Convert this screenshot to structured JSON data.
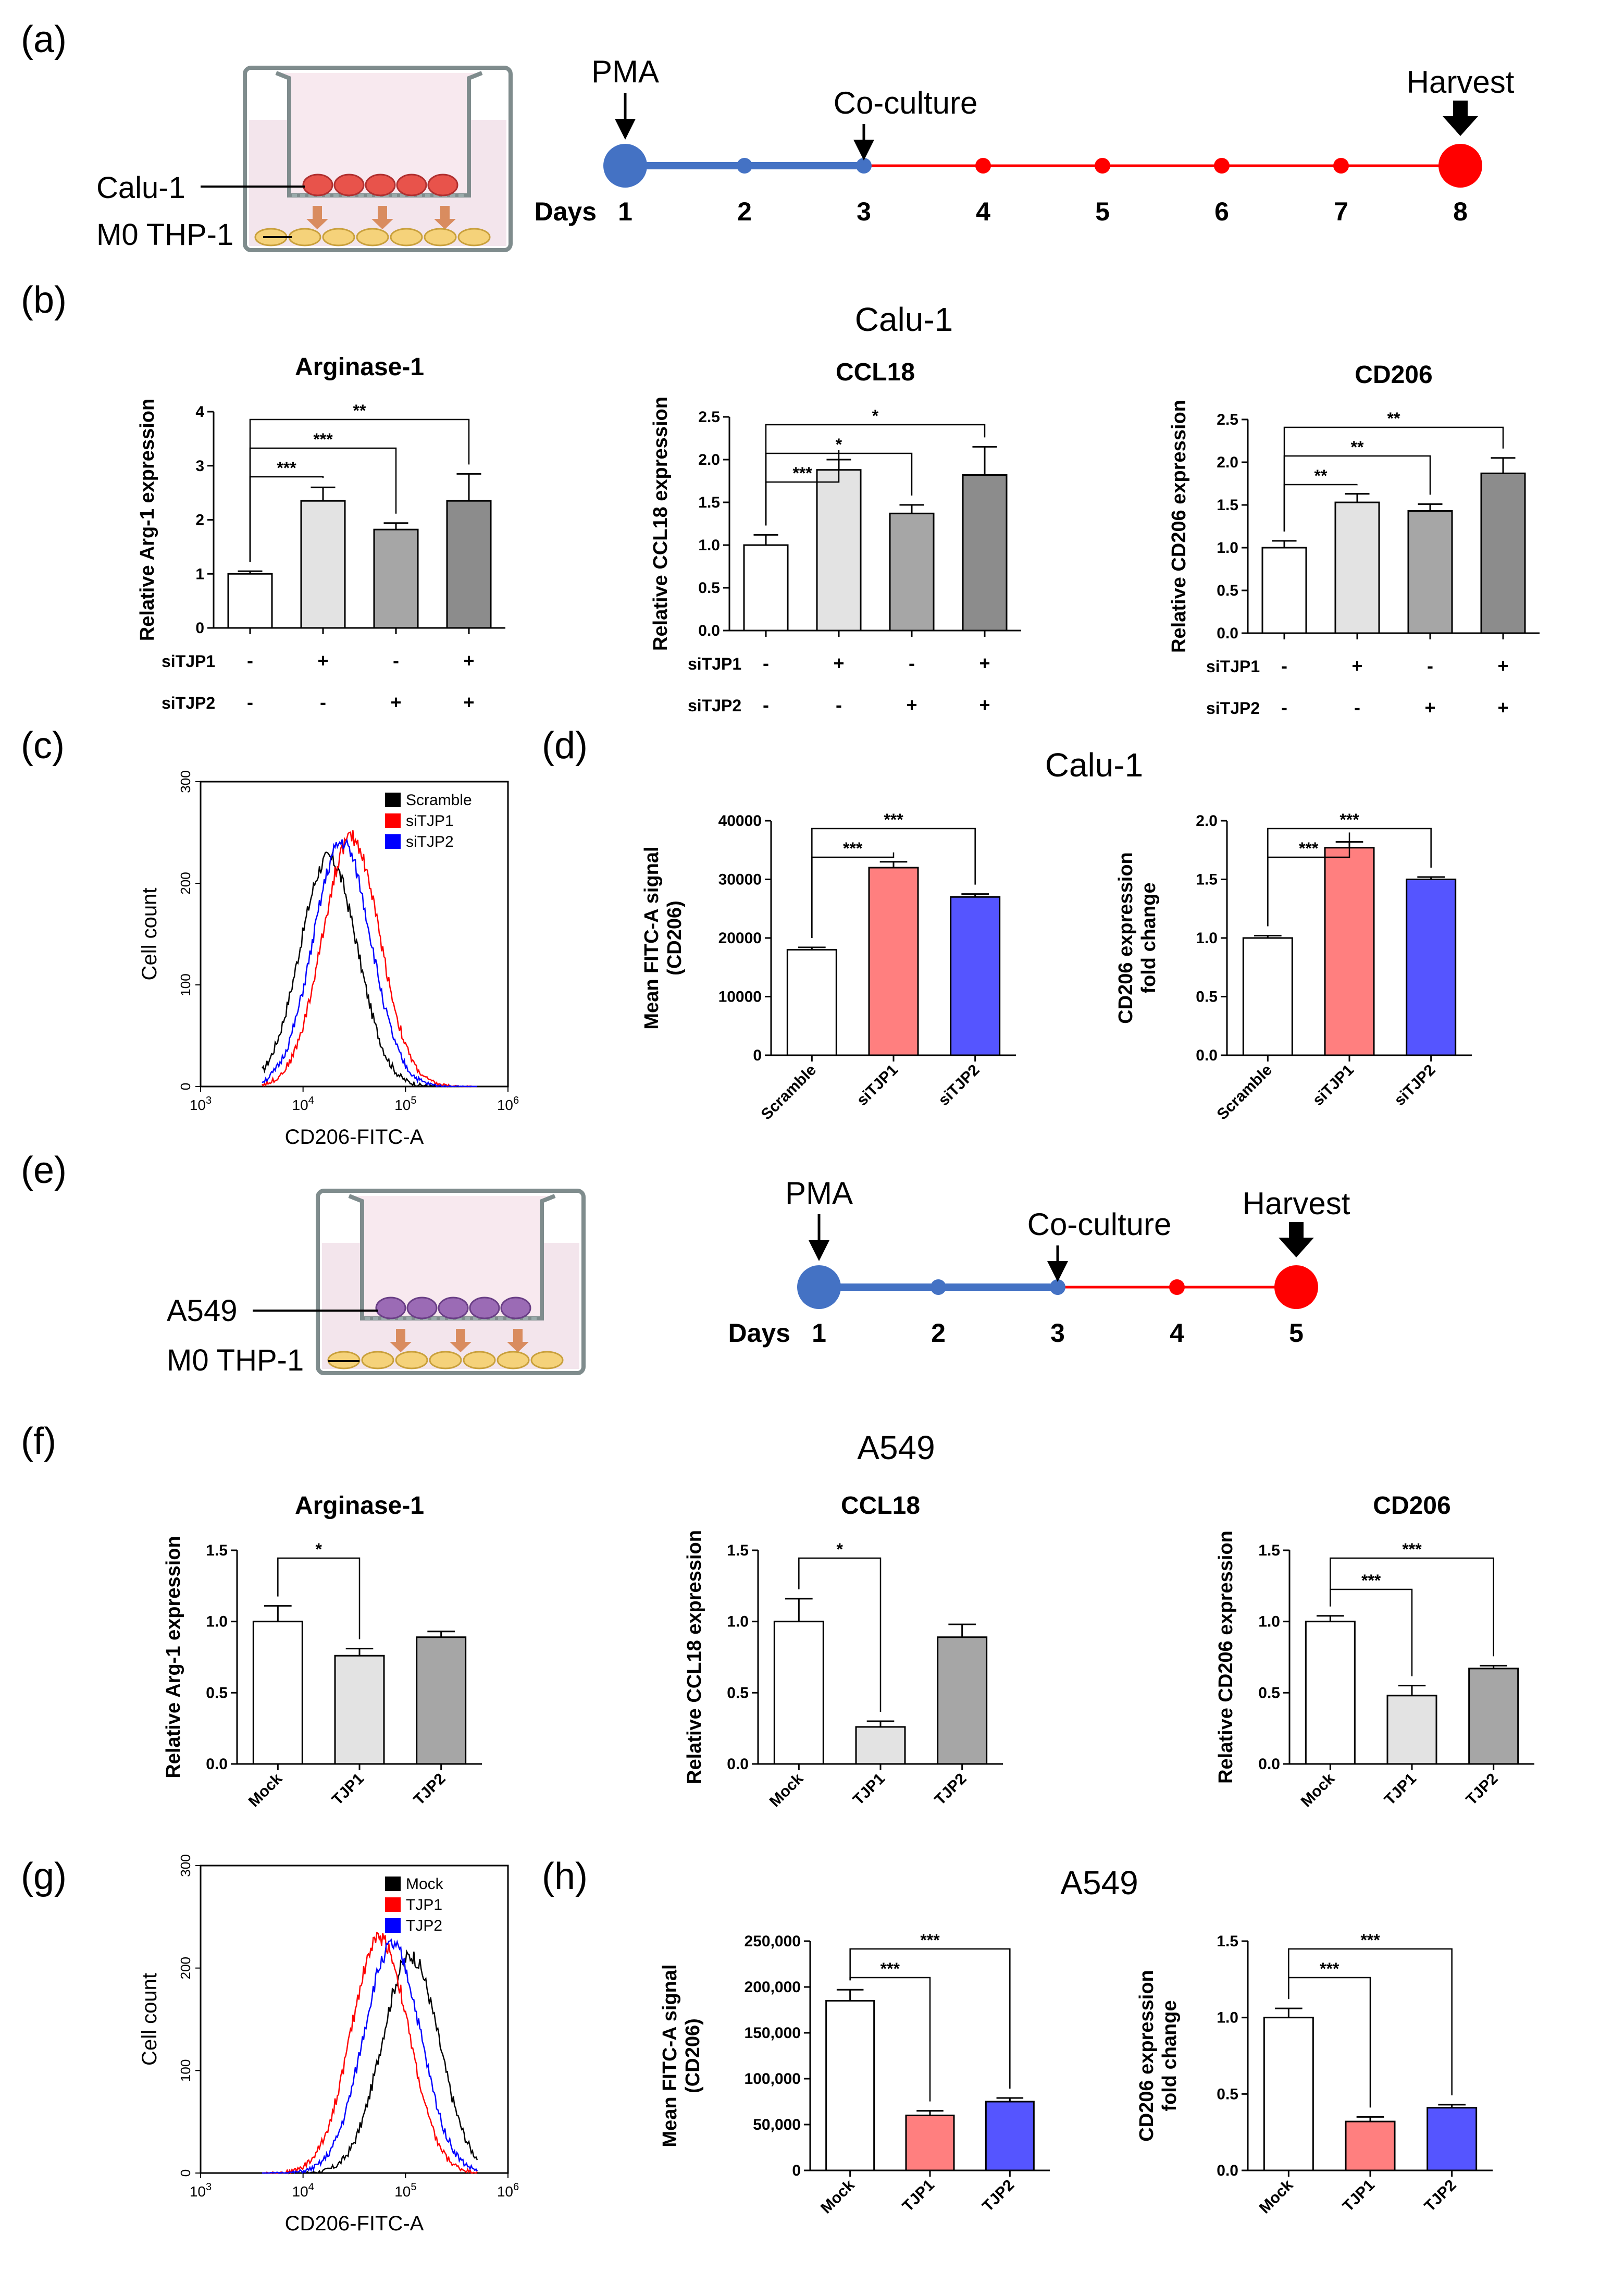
{
  "panel_labels": {
    "a": "(a)",
    "b": "(b)",
    "c": "(c)",
    "d": "(d)",
    "e": "(e)",
    "f": "(f)",
    "g": "(g)",
    "h": "(h)"
  },
  "titles": {
    "calu1_b": "Calu-1",
    "calu1_d": "Calu-1",
    "a549_f": "A549",
    "a549_h": "A549"
  },
  "diagram_a": {
    "cell_top": "Calu-1",
    "cell_bottom": "M0 THP-1"
  },
  "diagram_e": {
    "cell_top": "A549",
    "cell_bottom": "M0 THP-1"
  },
  "timeline_a": {
    "days_label": "Days",
    "days": [
      "1",
      "2",
      "3",
      "4",
      "5",
      "6",
      "7",
      "8"
    ],
    "events": {
      "pma": "PMA",
      "coculture": "Co-culture",
      "harvest": "Harvest"
    },
    "colors": {
      "pre": "#4472C4",
      "post": "#FF0000"
    }
  },
  "timeline_e": {
    "days_label": "Days",
    "days": [
      "1",
      "2",
      "3",
      "4",
      "5"
    ],
    "events": {
      "pma": "PMA",
      "coculture": "Co-culture",
      "harvest": "Harvest"
    },
    "colors": {
      "pre": "#4472C4",
      "post": "#FF0000"
    }
  },
  "colors": {
    "white": "#FFFFFF",
    "lightgray": "#E3E3E3",
    "gray": "#A6A6A6",
    "darkgray": "#8C8C8C",
    "salmon": "#FF7F7F",
    "blue": "#5555FF",
    "red": "#FF0000"
  },
  "chart_data": [
    {
      "id": "b1",
      "type": "bar",
      "title": "Arginase-1",
      "ylabel": "Relative Arg-1 expression",
      "ylim": [
        0,
        4
      ],
      "yticks": [
        "0",
        "1",
        "2",
        "3",
        "4"
      ],
      "rows": [
        {
          "label": "siTJP1",
          "marks": [
            "-",
            "+",
            "-",
            "+"
          ]
        },
        {
          "label": "siTJP2",
          "marks": [
            "-",
            "-",
            "+",
            "+"
          ]
        }
      ],
      "values": [
        1.0,
        2.35,
        1.82,
        2.35
      ],
      "errors": [
        0.05,
        0.25,
        0.12,
        0.5
      ],
      "sig": [
        {
          "from": 0,
          "to": 1,
          "label": "***"
        },
        {
          "from": 0,
          "to": 2,
          "label": "***"
        },
        {
          "from": 0,
          "to": 3,
          "label": "**"
        }
      ]
    },
    {
      "id": "b2",
      "type": "bar",
      "title": "CCL18",
      "ylabel": "Relative CCL18 expression",
      "ylim": [
        0,
        2.5
      ],
      "yticks": [
        "0.0",
        "0.5",
        "1.0",
        "1.5",
        "2.0",
        "2.5"
      ],
      "rows": [
        {
          "label": "siTJP1",
          "marks": [
            "-",
            "+",
            "-",
            "+"
          ]
        },
        {
          "label": "siTJP2",
          "marks": [
            "-",
            "-",
            "+",
            "+"
          ]
        }
      ],
      "values": [
        1.0,
        1.88,
        1.37,
        1.82
      ],
      "errors": [
        0.12,
        0.12,
        0.1,
        0.33
      ],
      "sig": [
        {
          "from": 0,
          "to": 1,
          "label": "***"
        },
        {
          "from": 0,
          "to": 2,
          "label": "*"
        },
        {
          "from": 0,
          "to": 3,
          "label": "*"
        }
      ]
    },
    {
      "id": "b3",
      "type": "bar",
      "title": "CD206",
      "ylabel": "Relative CD206 expression",
      "ylim": [
        0,
        2.5
      ],
      "yticks": [
        "0.0",
        "0.5",
        "1.0",
        "1.5",
        "2.0",
        "2.5"
      ],
      "rows": [
        {
          "label": "siTJP1",
          "marks": [
            "-",
            "+",
            "-",
            "+"
          ]
        },
        {
          "label": "siTJP2",
          "marks": [
            "-",
            "-",
            "+",
            "+"
          ]
        }
      ],
      "values": [
        1.0,
        1.53,
        1.43,
        1.87
      ],
      "errors": [
        0.08,
        0.1,
        0.08,
        0.18
      ],
      "sig": [
        {
          "from": 0,
          "to": 1,
          "label": "**"
        },
        {
          "from": 0,
          "to": 2,
          "label": "**"
        },
        {
          "from": 0,
          "to": 3,
          "label": "**"
        }
      ]
    },
    {
      "id": "c",
      "type": "histogram",
      "xlabel": "CD206-FITC-A",
      "ylabel": "Cell count",
      "ylim": [
        0,
        300
      ],
      "yticks": [
        "0",
        "100",
        "200",
        "300"
      ],
      "xticks": [
        "3",
        "4",
        "5",
        "6"
      ],
      "legend": [
        "Scramble",
        "siTJP1",
        "siTJP2"
      ],
      "series_colors": [
        "#000000",
        "#FF0000",
        "#0000FF"
      ],
      "peaks_log10": [
        4.25,
        4.47,
        4.38
      ],
      "peak_heights": [
        225,
        245,
        240
      ]
    },
    {
      "id": "d1",
      "type": "bar",
      "ylabel": "Mean FITC-A signal (CD206)",
      "ylim": [
        0,
        40000
      ],
      "yticks": [
        "0",
        "10000",
        "20000",
        "30000",
        "40000"
      ],
      "categories": [
        "Scramble",
        "siTJP1",
        "siTJP2"
      ],
      "values": [
        18000,
        32000,
        27000
      ],
      "errors": [
        400,
        1000,
        500
      ],
      "sig": [
        {
          "from": 0,
          "to": 1,
          "label": "***"
        },
        {
          "from": 0,
          "to": 2,
          "label": "***"
        }
      ]
    },
    {
      "id": "d2",
      "type": "bar",
      "ylabel": "CD206 expression fold change",
      "ylim": [
        0,
        2.0
      ],
      "yticks": [
        "0.0",
        "0.5",
        "1.0",
        "1.5",
        "2.0"
      ],
      "categories": [
        "Scramble",
        "siTJP1",
        "siTJP2"
      ],
      "values": [
        1.0,
        1.77,
        1.5
      ],
      "errors": [
        0.02,
        0.05,
        0.02
      ],
      "sig": [
        {
          "from": 0,
          "to": 1,
          "label": "***"
        },
        {
          "from": 0,
          "to": 2,
          "label": "***"
        }
      ]
    },
    {
      "id": "f1",
      "type": "bar",
      "title": "Arginase-1",
      "ylabel": "Relative Arg-1 expression",
      "ylim": [
        0,
        1.5
      ],
      "yticks": [
        "0.0",
        "0.5",
        "1.0",
        "1.5"
      ],
      "categories": [
        "Mock",
        "TJP1",
        "TJP2"
      ],
      "values": [
        1.0,
        0.76,
        0.89
      ],
      "errors": [
        0.11,
        0.05,
        0.04
      ],
      "sig": [
        {
          "from": 0,
          "to": 1,
          "label": "*"
        }
      ]
    },
    {
      "id": "f2",
      "type": "bar",
      "title": "CCL18",
      "ylabel": "Relative CCL18 expression",
      "ylim": [
        0,
        1.5
      ],
      "yticks": [
        "0.0",
        "0.5",
        "1.0",
        "1.5"
      ],
      "categories": [
        "Mock",
        "TJP1",
        "TJP2"
      ],
      "values": [
        1.0,
        0.26,
        0.89
      ],
      "errors": [
        0.16,
        0.04,
        0.09
      ],
      "sig": [
        {
          "from": 0,
          "to": 1,
          "label": "*"
        }
      ]
    },
    {
      "id": "f3",
      "type": "bar",
      "title": "CD206",
      "ylabel": "Relative CD206 expression",
      "ylim": [
        0,
        1.5
      ],
      "yticks": [
        "0.0",
        "0.5",
        "1.0",
        "1.5"
      ],
      "categories": [
        "Mock",
        "TJP1",
        "TJP2"
      ],
      "values": [
        1.0,
        0.48,
        0.67
      ],
      "errors": [
        0.04,
        0.07,
        0.02
      ],
      "sig": [
        {
          "from": 0,
          "to": 1,
          "label": "***"
        },
        {
          "from": 0,
          "to": 2,
          "label": "***"
        }
      ]
    },
    {
      "id": "g",
      "type": "histogram",
      "xlabel": "CD206-FITC-A",
      "ylabel": "Cell count",
      "ylim": [
        0,
        300
      ],
      "yticks": [
        "0",
        "100",
        "200",
        "300"
      ],
      "xticks": [
        "3",
        "4",
        "5",
        "6"
      ],
      "legend": [
        "Mock",
        "TJP1",
        "TJP2"
      ],
      "series_colors": [
        "#000000",
        "#FF0000",
        "#0000FF"
      ],
      "peaks_log10": [
        5.05,
        4.75,
        4.87
      ],
      "peak_heights": [
        212,
        230,
        222
      ]
    },
    {
      "id": "h1",
      "type": "bar",
      "ylabel": "Mean FITC-A signal (CD206)",
      "ylim": [
        0,
        250000
      ],
      "yticks": [
        "0",
        "50,000",
        "100,000",
        "150,000",
        "200,000",
        "250,000"
      ],
      "categories": [
        "Mock",
        "TJP1",
        "TJP2"
      ],
      "values": [
        185000,
        60000,
        75000
      ],
      "errors": [
        12000,
        5000,
        4000
      ],
      "sig": [
        {
          "from": 0,
          "to": 1,
          "label": "***"
        },
        {
          "from": 0,
          "to": 2,
          "label": "***"
        }
      ]
    },
    {
      "id": "h2",
      "type": "bar",
      "ylabel": "CD206 expression fold change",
      "ylim": [
        0,
        1.5
      ],
      "yticks": [
        "0.0",
        "0.5",
        "1.0",
        "1.5"
      ],
      "categories": [
        "Mock",
        "TJP1",
        "TJP2"
      ],
      "values": [
        1.0,
        0.32,
        0.41
      ],
      "errors": [
        0.06,
        0.03,
        0.02
      ],
      "sig": [
        {
          "from": 0,
          "to": 1,
          "label": "***"
        },
        {
          "from": 0,
          "to": 2,
          "label": "***"
        }
      ]
    }
  ]
}
